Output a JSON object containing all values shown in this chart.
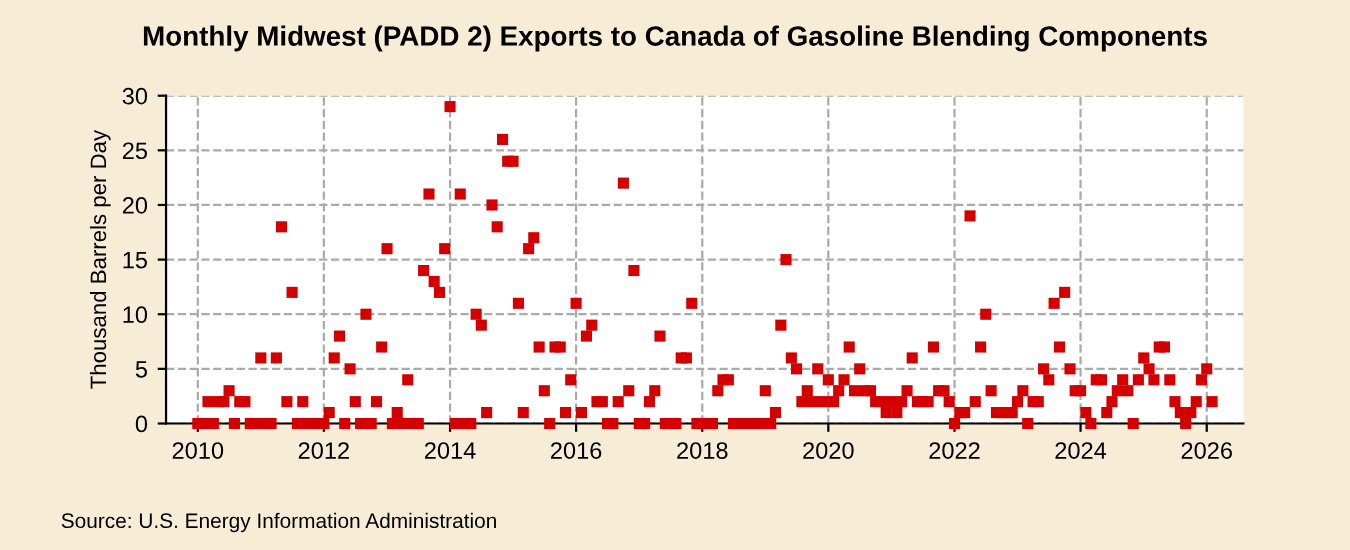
{
  "chart_data": {
    "type": "scatter",
    "title": "Monthly Midwest (PADD 2) Exports to Canada of Gasoline Blending Components",
    "ylabel": "Thousand Barrels per Day",
    "annotations": [
      "Source: U.S. Energy Information Administration"
    ],
    "x": [
      "2010-01",
      "2010-02",
      "2010-03",
      "2010-04",
      "2010-05",
      "2010-06",
      "2010-07",
      "2010-08",
      "2010-09",
      "2010-10",
      "2010-11",
      "2010-12",
      "2011-01",
      "2011-02",
      "2011-03",
      "2011-04",
      "2011-05",
      "2011-06",
      "2011-07",
      "2011-08",
      "2011-09",
      "2011-10",
      "2011-11",
      "2011-12",
      "2012-01",
      "2012-02",
      "2012-03",
      "2012-04",
      "2012-05",
      "2012-06",
      "2012-07",
      "2012-08",
      "2012-09",
      "2012-10",
      "2012-11",
      "2012-12",
      "2013-01",
      "2013-02",
      "2013-03",
      "2013-04",
      "2013-05",
      "2013-06",
      "2013-07",
      "2013-08",
      "2013-09",
      "2013-10",
      "2013-11",
      "2013-12",
      "2014-01",
      "2014-02",
      "2014-03",
      "2014-04",
      "2014-05",
      "2014-06",
      "2014-07",
      "2014-08",
      "2014-09",
      "2014-10",
      "2014-11",
      "2014-12",
      "2015-01",
      "2015-02",
      "2015-03",
      "2015-04",
      "2015-05",
      "2015-06",
      "2015-07",
      "2015-08",
      "2015-09",
      "2015-10",
      "2015-11",
      "2015-12",
      "2016-01",
      "2016-02",
      "2016-03",
      "2016-04",
      "2016-05",
      "2016-06",
      "2016-07",
      "2016-08",
      "2016-09",
      "2016-10",
      "2016-11",
      "2016-12",
      "2017-01",
      "2017-02",
      "2017-03",
      "2017-04",
      "2017-05",
      "2017-06",
      "2017-07",
      "2017-08",
      "2017-09",
      "2017-10",
      "2017-11",
      "2017-12",
      "2018-01",
      "2018-02",
      "2018-03",
      "2018-04",
      "2018-05",
      "2018-06",
      "2018-07",
      "2018-08",
      "2018-09",
      "2018-10",
      "2018-11",
      "2018-12",
      "2019-01",
      "2019-02",
      "2019-03",
      "2019-04",
      "2019-05",
      "2019-06",
      "2019-07",
      "2019-08",
      "2019-09",
      "2019-10",
      "2019-11",
      "2019-12",
      "2020-01",
      "2020-02",
      "2020-03",
      "2020-04",
      "2020-05",
      "2020-06",
      "2020-07",
      "2020-08",
      "2020-09",
      "2020-10",
      "2020-11",
      "2020-12",
      "2021-01",
      "2021-02",
      "2021-03",
      "2021-04",
      "2021-05",
      "2021-06",
      "2021-07",
      "2021-08",
      "2021-09",
      "2021-10",
      "2021-11",
      "2021-12",
      "2022-01",
      "2022-02",
      "2022-03",
      "2022-04",
      "2022-05",
      "2022-06",
      "2022-07",
      "2022-08",
      "2022-09",
      "2022-10",
      "2022-11",
      "2022-12",
      "2023-01",
      "2023-02",
      "2023-03",
      "2023-04",
      "2023-05",
      "2023-06",
      "2023-07",
      "2023-08",
      "2023-09",
      "2023-10",
      "2023-11",
      "2023-12",
      "2024-01",
      "2024-02",
      "2024-03",
      "2024-04",
      "2024-05",
      "2024-06",
      "2024-07",
      "2024-08",
      "2024-09",
      "2024-10",
      "2024-11",
      "2024-12",
      "2025-01",
      "2025-02",
      "2025-03",
      "2025-04",
      "2025-05",
      "2025-06",
      "2025-07",
      "2025-08",
      "2025-09",
      "2025-10",
      "2025-11",
      "2025-12",
      "2026-01",
      "2026-02"
    ],
    "series": [
      {
        "color": "#d40000",
        "values": [
          0,
          0,
          2,
          0,
          2,
          2,
          3,
          0,
          2,
          2,
          0,
          0,
          6,
          0,
          0,
          6,
          18,
          2,
          12,
          0,
          2,
          0,
          0,
          0,
          0,
          1,
          6,
          8,
          0,
          5,
          2,
          0,
          10,
          0,
          2,
          7,
          16,
          0,
          1,
          0,
          4,
          0,
          0,
          14,
          21,
          13,
          12,
          16,
          29,
          0,
          21,
          0,
          0,
          10,
          9,
          1,
          20,
          18,
          26,
          24,
          24,
          11,
          1,
          16,
          17,
          7,
          3,
          0,
          7,
          7,
          1,
          4,
          11,
          1,
          8,
          9,
          2,
          2,
          0,
          0,
          2,
          22,
          3,
          14,
          0,
          0,
          2,
          3,
          8,
          0,
          0,
          0,
          6,
          6,
          11,
          0,
          0,
          0,
          0,
          3,
          4,
          4,
          0,
          0,
          0,
          0,
          0,
          0,
          3,
          0,
          1,
          9,
          15,
          6,
          5,
          2,
          3,
          2,
          5,
          2,
          4,
          2,
          3,
          4,
          7,
          3,
          5,
          3,
          3,
          2,
          2,
          1,
          2,
          1,
          2,
          3,
          6,
          2,
          2,
          2,
          7,
          3,
          3,
          2,
          0,
          1,
          1,
          19,
          2,
          7,
          10,
          3,
          1,
          1,
          1,
          1,
          2,
          3,
          0,
          2,
          2,
          5,
          4,
          11,
          7,
          12,
          5,
          3,
          3,
          1,
          0,
          4,
          4,
          1,
          2,
          3,
          4,
          3,
          0,
          4,
          6,
          5,
          4,
          7,
          7,
          4,
          2,
          1,
          0,
          1,
          2,
          4,
          5,
          2
        ]
      }
    ],
    "xlim": [
      "2009-07",
      "2026-08"
    ],
    "xticks": [
      {
        "value": "2010",
        "label": "2010"
      },
      {
        "value": "2012",
        "label": "2012"
      },
      {
        "value": "2014",
        "label": "2014"
      },
      {
        "value": "2016",
        "label": "2016"
      },
      {
        "value": "2018",
        "label": "2018"
      },
      {
        "value": "2020",
        "label": "2020"
      },
      {
        "value": "2022",
        "label": "2022"
      },
      {
        "value": "2024",
        "label": "2024"
      },
      {
        "value": "2026",
        "label": "2026"
      }
    ],
    "ylim": [
      0,
      30
    ],
    "yticks": [
      0,
      5,
      10,
      15,
      20,
      25,
      30
    ],
    "grid": true,
    "marker": "square"
  }
}
